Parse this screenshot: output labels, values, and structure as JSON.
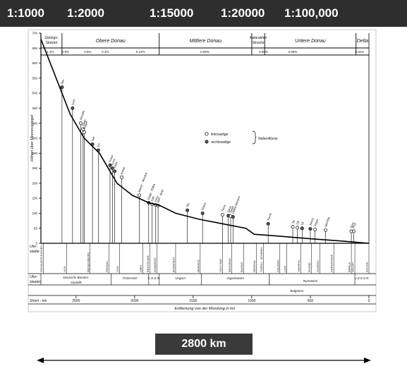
{
  "header": {
    "scales": [
      "1:1000",
      "1:2000",
      "1:15000",
      "1:20000",
      "1:100,000"
    ]
  },
  "badge": {
    "distance_label": "2800 km"
  },
  "chart_data": {
    "type": "line",
    "ylabel": "Höhen über Meeresspiegel",
    "xlabel": "Entfernung von der Mündung in km",
    "xlim": [
      2800,
      0
    ],
    "ylim": [
      0,
      700
    ],
    "yticks": [
      0,
      50,
      100,
      150,
      200,
      250,
      300,
      350,
      400,
      450,
      500,
      550,
      600,
      650,
      700
    ],
    "xticks": [
      {
        "value": 2500,
        "label": "2500"
      },
      {
        "value": 2000,
        "label": "2000"
      },
      {
        "value": 1500,
        "label": "1500"
      },
      {
        "value": 1000,
        "label": "1000"
      },
      {
        "value": 500,
        "label": "500"
      },
      {
        "value": 0,
        "label": "0"
      }
    ],
    "sections": [
      {
        "label": "Gebirgs- Strecke",
        "start": 2800,
        "end": 2620
      },
      {
        "label": "Obere Donau",
        "start": 2620,
        "end": 1790
      },
      {
        "label": "Mittlere Donau",
        "start": 1790,
        "end": 1000
      },
      {
        "label": "Katarakten Strecke",
        "start": 1000,
        "end": 890
      },
      {
        "label": "Untere Donau",
        "start": 890,
        "end": 110
      },
      {
        "label": "Delta",
        "start": 110,
        "end": 0
      }
    ],
    "gradients": [
      {
        "label": "1.1%",
        "x": 2720
      },
      {
        "label": "0.9%",
        "x": 2590
      },
      {
        "label": "0.5%",
        "x": 2400
      },
      {
        "label": "0.4%",
        "x": 2250
      },
      {
        "label": "0.12%",
        "x": 1950
      },
      {
        "label": "0.06%",
        "x": 1400
      },
      {
        "label": "0.05%",
        "x": 900
      },
      {
        "label": "0.05%",
        "x": 650
      },
      {
        "label": "0.01%",
        "x": 80
      }
    ],
    "profile": [
      {
        "x": 2800,
        "y": 680
      },
      {
        "x": 2700,
        "y": 580
      },
      {
        "x": 2550,
        "y": 430
      },
      {
        "x": 2430,
        "y": 350
      },
      {
        "x": 2300,
        "y": 300
      },
      {
        "x": 2150,
        "y": 200
      },
      {
        "x": 2020,
        "y": 160
      },
      {
        "x": 1880,
        "y": 135
      },
      {
        "x": 1780,
        "y": 125
      },
      {
        "x": 1650,
        "y": 100
      },
      {
        "x": 1450,
        "y": 80
      },
      {
        "x": 1250,
        "y": 65
      },
      {
        "x": 1050,
        "y": 50
      },
      {
        "x": 980,
        "y": 30
      },
      {
        "x": 800,
        "y": 25
      },
      {
        "x": 500,
        "y": 15
      },
      {
        "x": 250,
        "y": 8
      },
      {
        "x": 0,
        "y": 0
      }
    ],
    "tributaries": [
      {
        "x": 2620,
        "y": 520,
        "name": "Iller",
        "side": "right"
      },
      {
        "x": 2530,
        "y": 450,
        "name": "Lech",
        "side": "right"
      },
      {
        "x": 2460,
        "y": 400,
        "name": "Altmühl",
        "side": "left"
      },
      {
        "x": 2440,
        "y": 380,
        "name": "Naab",
        "side": "left"
      },
      {
        "x": 2430,
        "y": 370,
        "name": "Regen",
        "side": "left"
      },
      {
        "x": 2360,
        "y": 330,
        "name": "Isar",
        "side": "right"
      },
      {
        "x": 2310,
        "y": 310,
        "name": "Inn",
        "side": "right"
      },
      {
        "x": 2210,
        "y": 260,
        "name": "Traun",
        "side": "right"
      },
      {
        "x": 2190,
        "y": 250,
        "name": "Enns",
        "side": "right"
      },
      {
        "x": 2170,
        "y": 240,
        "name": "Ybbs",
        "side": "right"
      },
      {
        "x": 2110,
        "y": 220,
        "name": "Kamp",
        "side": "left"
      },
      {
        "x": 1960,
        "y": 160,
        "name": "March - Morava",
        "side": "left"
      },
      {
        "x": 1880,
        "y": 135,
        "name": "Raab - Rába",
        "side": "right"
      },
      {
        "x": 1850,
        "y": 130,
        "name": "Váh",
        "side": "left"
      },
      {
        "x": 1820,
        "y": 128,
        "name": "Hron",
        "side": "left"
      },
      {
        "x": 1800,
        "y": 126,
        "name": "Ipel - Ipoly",
        "side": "left"
      },
      {
        "x": 1550,
        "y": 110,
        "name": "Sió",
        "side": "right"
      },
      {
        "x": 1420,
        "y": 100,
        "name": "Drava",
        "side": "right"
      },
      {
        "x": 1250,
        "y": 95,
        "name": "Tisza",
        "side": "left"
      },
      {
        "x": 1200,
        "y": 92,
        "name": "Sava",
        "side": "right"
      },
      {
        "x": 1180,
        "y": 90,
        "name": "Tamis",
        "side": "left"
      },
      {
        "x": 1160,
        "y": 88,
        "name": "Velika Morava",
        "side": "right"
      },
      {
        "x": 860,
        "y": 65,
        "name": "Timok",
        "side": "right"
      },
      {
        "x": 650,
        "y": 55,
        "name": "Jiu",
        "side": "left"
      },
      {
        "x": 610,
        "y": 52,
        "name": "Olt",
        "side": "left"
      },
      {
        "x": 570,
        "y": 50,
        "name": "Vit",
        "side": "right"
      },
      {
        "x": 500,
        "y": 48,
        "name": "Jantra",
        "side": "right"
      },
      {
        "x": 460,
        "y": 46,
        "name": "Arges",
        "side": "left"
      },
      {
        "x": 370,
        "y": 44,
        "name": "Ialomita",
        "side": "left"
      },
      {
        "x": 150,
        "y": 40,
        "name": "Siret",
        "side": "left"
      },
      {
        "x": 130,
        "y": 40,
        "name": "Prut",
        "side": "left"
      }
    ],
    "legend": {
      "left_label": "linksseitige",
      "right_label": "rechtsseitige",
      "group_label": "Nebenflüsse",
      "placement": "center-right"
    },
    "cities": [
      {
        "x": 2780,
        "name": "DONAUESCHINGEN"
      },
      {
        "x": 2580,
        "name": "ULM"
      },
      {
        "x": 2380,
        "name": "REGENSBURG"
      },
      {
        "x": 2220,
        "name": "PASSAU"
      },
      {
        "x": 2130,
        "name": "LINZ"
      },
      {
        "x": 1930,
        "name": "WIEN"
      },
      {
        "x": 1870,
        "name": "BRATISLAVA"
      },
      {
        "x": 1810,
        "name": "KOMÁRNO"
      },
      {
        "x": 1650,
        "name": "BUDAPEST"
      },
      {
        "x": 1440,
        "name": "MOHÁCS"
      },
      {
        "x": 1250,
        "name": "NOVI SAD"
      },
      {
        "x": 1170,
        "name": "BEOGRAD"
      },
      {
        "x": 1070,
        "name": "BAZIAS"
      },
      {
        "x": 960,
        "name": "ORSOVA"
      },
      {
        "x": 900,
        "name": "TURNU - SEVERIN"
      },
      {
        "x": 760,
        "name": "CALAFAT"
      },
      {
        "x": 700,
        "name": "LOM"
      },
      {
        "x": 580,
        "name": "NIKOPOL"
      },
      {
        "x": 490,
        "name": "RUSSE"
      },
      {
        "x": 420,
        "name": "GIURGIU"
      },
      {
        "x": 300,
        "name": "CERNAVODA"
      },
      {
        "x": 150,
        "name": "BRAILA"
      },
      {
        "x": 120,
        "name": "GALATI"
      },
      {
        "x": 0,
        "name": "SULINA"
      }
    ],
    "row_labels": {
      "cities": "Ufer- städte",
      "states": "Ufer- staaten",
      "km": "Strom - km"
    },
    "states": [
      {
        "label": "Deutsche Bundes- republik",
        "start": 2800,
        "end": 2200
      },
      {
        "label": "Österreich",
        "start": 2200,
        "end": 1880
      },
      {
        "label": "C.S.S.R.",
        "start": 1880,
        "end": 1790
      },
      {
        "label": "Ungarn",
        "start": 1790,
        "end": 1430
      },
      {
        "label": "Jugoslawien",
        "start": 1430,
        "end": 850
      },
      {
        "label": "Rumänien",
        "start": 850,
        "end": 150
      },
      {
        "label": "Bulgarien",
        "start": 850,
        "end": 380
      },
      {
        "label": "U.d.S.S.R.",
        "start": 120,
        "end": 0
      }
    ]
  }
}
